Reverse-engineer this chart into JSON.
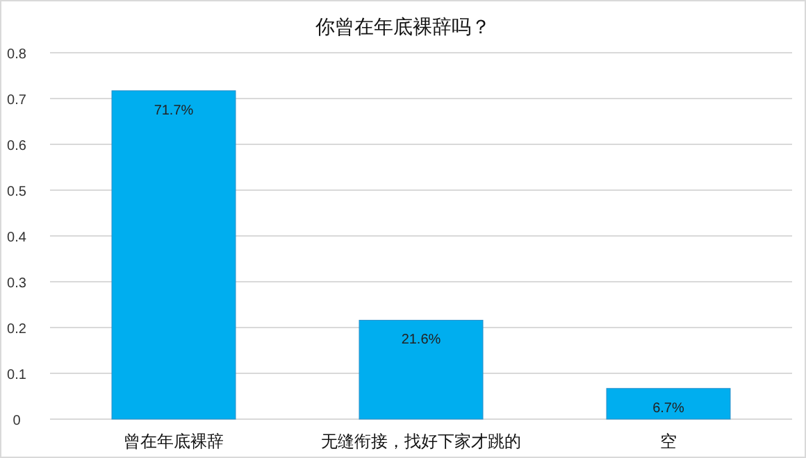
{
  "chart_data": {
    "type": "bar",
    "title": "你曾在年底裸辞吗？",
    "categories": [
      "曾在年底裸辞",
      "无缝衔接，找好下家才跳的",
      "空"
    ],
    "values": [
      0.717,
      0.216,
      0.067
    ],
    "value_labels": [
      "71.7%",
      "21.6%",
      "6.7%"
    ],
    "color": "#00aeef",
    "ylim": [
      0,
      0.8
    ],
    "yticks": [
      0,
      0.1,
      0.2,
      0.3,
      0.4,
      0.5,
      0.6,
      0.7,
      0.8
    ],
    "grid": "y"
  }
}
